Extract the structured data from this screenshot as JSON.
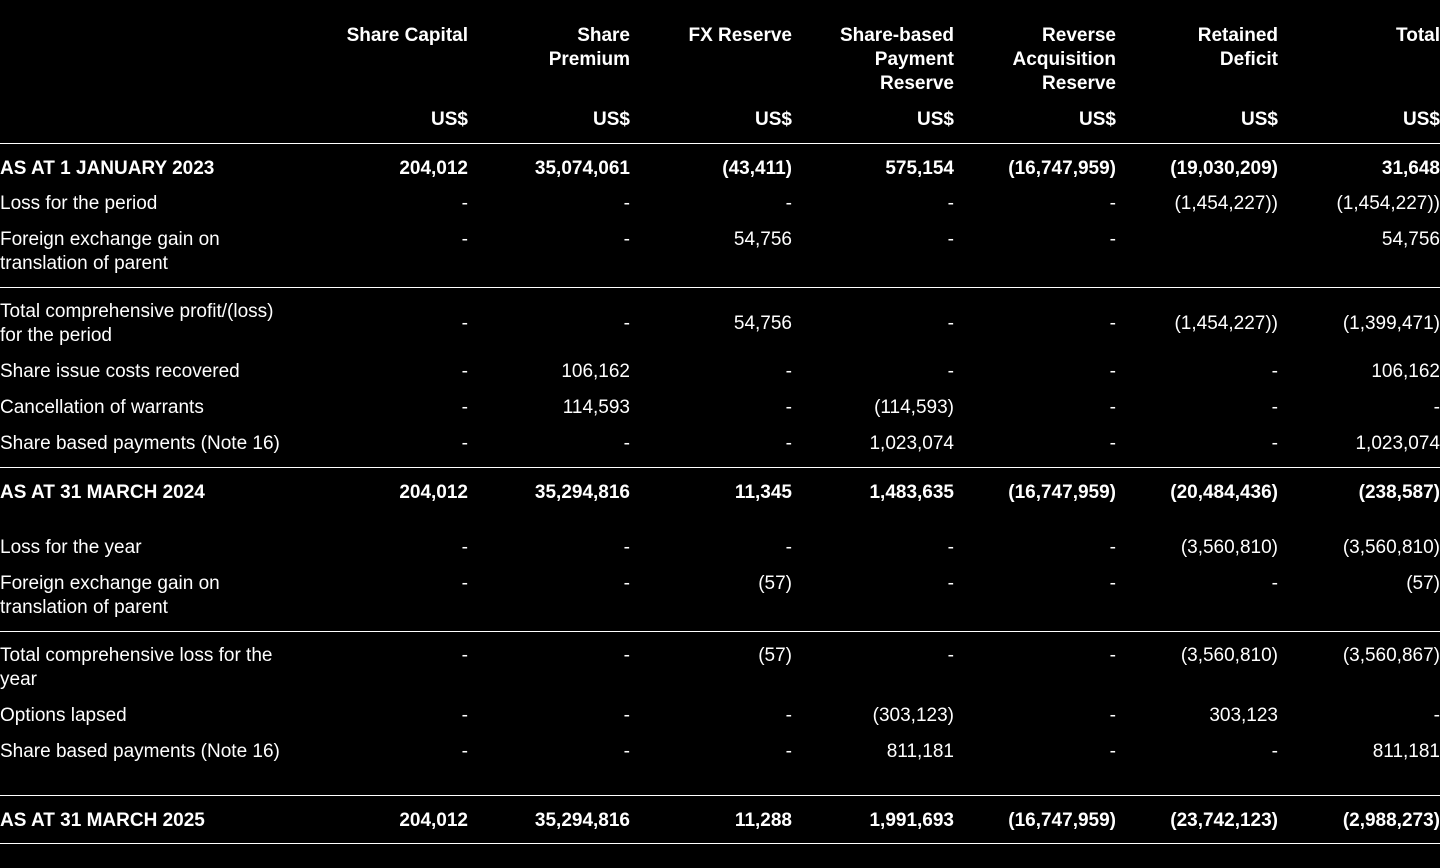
{
  "columns": [
    {
      "title": "Share Capital",
      "unit": "US$"
    },
    {
      "title": "Share\nPremium",
      "unit": "US$"
    },
    {
      "title": "FX Reserve",
      "unit": "US$"
    },
    {
      "title": "Share-based\nPayment\nReserve",
      "unit": "US$"
    },
    {
      "title": "Reverse\nAcquisition\nReserve",
      "unit": "US$"
    },
    {
      "title": "Retained\nDeficit",
      "unit": "US$"
    },
    {
      "title": "Total",
      "unit": "US$"
    }
  ],
  "rows": [
    {
      "label": "AS AT 1 JANUARY 2023",
      "bold": true,
      "values": [
        "204,012",
        "35,074,061",
        "(43,411)",
        "575,154",
        "(16,747,959)",
        "(19,030,209)",
        "31,648"
      ]
    },
    {
      "label": "Loss for the period",
      "bold": false,
      "values": [
        "-",
        "-",
        "-",
        "-",
        "-",
        "(1,454,227))",
        "(1,454,227))"
      ]
    },
    {
      "label": "Foreign exchange gain on\ntranslation of parent",
      "bold": false,
      "values": [
        "-",
        "-",
        "54,756",
        "-",
        "-",
        "",
        "54,756"
      ]
    },
    {
      "label": "Total comprehensive profit/(loss)\nfor the period",
      "bold": false,
      "values": [
        "-",
        "-",
        "54,756",
        "-",
        "-",
        "(1,454,227))",
        "(1,399,471)"
      ]
    },
    {
      "label": "Share issue costs recovered",
      "bold": false,
      "values": [
        "-",
        "106,162",
        "-",
        "-",
        "-",
        "-",
        "106,162"
      ]
    },
    {
      "label": "Cancellation of warrants",
      "bold": false,
      "values": [
        "-",
        "114,593",
        "-",
        "(114,593)",
        "-",
        "-",
        "-"
      ]
    },
    {
      "label": "Share based payments (Note 16)",
      "bold": false,
      "values": [
        "-",
        "-",
        "-",
        "1,023,074",
        "-",
        "-",
        "1,023,074"
      ]
    },
    {
      "label": "AS AT 31 MARCH 2024",
      "bold": true,
      "values": [
        "204,012",
        "35,294,816",
        "11,345",
        "1,483,635",
        "(16,747,959)",
        "(20,484,436)",
        "(238,587)"
      ]
    },
    {
      "label": "Loss for the year",
      "bold": false,
      "values": [
        "-",
        "-",
        "-",
        "-",
        "-",
        "(3,560,810)",
        "(3,560,810)"
      ]
    },
    {
      "label": "Foreign exchange gain on\ntranslation of parent",
      "bold": false,
      "values": [
        "-",
        "-",
        "(57)",
        "-",
        "-",
        "-",
        "(57)"
      ]
    },
    {
      "label": "Total comprehensive loss for the\nyear",
      "bold": false,
      "values": [
        "-",
        "-",
        "(57)",
        "-",
        "-",
        "(3,560,810)",
        "(3,560,867)"
      ]
    },
    {
      "label": "Options lapsed",
      "bold": false,
      "values": [
        "-",
        "-",
        "-",
        "(303,123)",
        "-",
        "303,123",
        "-"
      ]
    },
    {
      "label": "Share based payments (Note 16)",
      "bold": false,
      "values": [
        "-",
        "-",
        "-",
        "811,181",
        "-",
        "-",
        "811,181"
      ]
    },
    {
      "label": "AS AT 31 MARCH 2025",
      "bold": true,
      "values": [
        "204,012",
        "35,294,816",
        "11,288",
        "1,991,693",
        "(16,747,959)",
        "(23,742,123)",
        "(2,988,273)"
      ]
    }
  ]
}
